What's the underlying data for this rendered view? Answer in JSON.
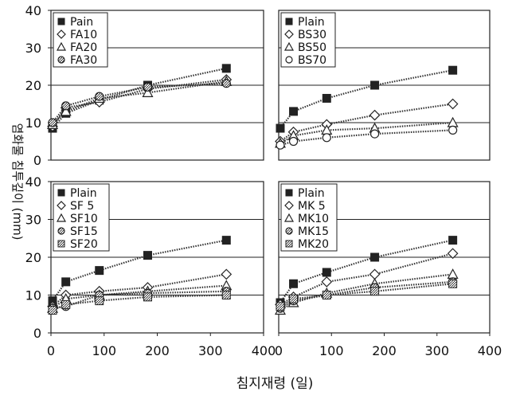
{
  "chart_data": {
    "type": "line",
    "xlabel": "침지재령 (일)",
    "ylabel": "염화물 침투깊이 (mm)",
    "xlim": [
      0,
      400
    ],
    "ylim": [
      0,
      40
    ],
    "x_ticks": [
      "0",
      "100",
      "200",
      "300",
      "400"
    ],
    "y_ticks": [
      "0",
      "10",
      "20",
      "30",
      "40"
    ],
    "grid": "horizontal",
    "panels": [
      {
        "legend_position": "top-left",
        "series": [
          {
            "name": "Pain",
            "marker": "square-filled",
            "x": [
              3,
              28,
              91,
              182,
              330
            ],
            "y": [
              8.5,
              12.5,
              16.0,
              20.0,
              24.5
            ]
          },
          {
            "name": "FA10",
            "marker": "diamond",
            "x": [
              3,
              28,
              91,
              182,
              330
            ],
            "y": [
              9.0,
              14.0,
              15.5,
              19.0,
              21.5
            ]
          },
          {
            "name": "FA20",
            "marker": "triangle",
            "x": [
              3,
              28,
              91,
              182,
              330
            ],
            "y": [
              9.5,
              13.0,
              16.5,
              18.0,
              21.0
            ]
          },
          {
            "name": "FA30",
            "marker": "circle-hatched",
            "x": [
              3,
              28,
              91,
              182,
              330
            ],
            "y": [
              10.0,
              14.5,
              17.0,
              19.5,
              20.5
            ]
          }
        ]
      },
      {
        "legend_position": "top-left",
        "series": [
          {
            "name": "Plain",
            "marker": "square-filled",
            "x": [
              3,
              28,
              91,
              182,
              330
            ],
            "y": [
              8.5,
              13.0,
              16.5,
              20.0,
              24.0
            ]
          },
          {
            "name": "BS30",
            "marker": "diamond",
            "x": [
              3,
              28,
              91,
              182,
              330
            ],
            "y": [
              5.0,
              7.5,
              9.5,
              12.0,
              15.0
            ]
          },
          {
            "name": "BS50",
            "marker": "triangle",
            "x": [
              3,
              28,
              91,
              182,
              330
            ],
            "y": [
              4.5,
              6.5,
              8.0,
              8.5,
              10.0
            ]
          },
          {
            "name": "BS70",
            "marker": "circle",
            "x": [
              3,
              28,
              91,
              182,
              330
            ],
            "y": [
              4.0,
              5.0,
              6.0,
              7.0,
              8.0
            ]
          }
        ]
      },
      {
        "legend_position": "top-left",
        "series": [
          {
            "name": "Plain",
            "marker": "square-filled",
            "x": [
              3,
              28,
              91,
              182,
              330
            ],
            "y": [
              8.5,
              13.5,
              16.5,
              20.5,
              24.5
            ]
          },
          {
            "name": "SF 5",
            "marker": "diamond",
            "x": [
              3,
              28,
              91,
              182,
              330
            ],
            "y": [
              7.0,
              10.0,
              11.0,
              12.0,
              15.5
            ]
          },
          {
            "name": "SF10",
            "marker": "triangle",
            "x": [
              3,
              28,
              91,
              182,
              330
            ],
            "y": [
              6.5,
              9.0,
              10.0,
              11.0,
              12.5
            ]
          },
          {
            "name": "SF15",
            "marker": "circle-hatched",
            "x": [
              3,
              28,
              91,
              182,
              330
            ],
            "y": [
              6.5,
              7.0,
              10.0,
              10.5,
              11.0
            ]
          },
          {
            "name": "SF20",
            "marker": "square-hatched",
            "x": [
              3,
              28,
              91,
              182,
              330
            ],
            "y": [
              6.0,
              7.5,
              8.5,
              9.5,
              10.0
            ]
          }
        ]
      },
      {
        "legend_position": "top-left",
        "series": [
          {
            "name": "Plain",
            "marker": "square-filled",
            "x": [
              3,
              28,
              91,
              182,
              330
            ],
            "y": [
              8.0,
              13.0,
              16.0,
              20.0,
              24.5
            ]
          },
          {
            "name": "MK 5",
            "marker": "diamond",
            "x": [
              3,
              28,
              91,
              182,
              330
            ],
            "y": [
              7.5,
              9.5,
              13.5,
              15.5,
              21.0
            ]
          },
          {
            "name": "MK10",
            "marker": "triangle",
            "x": [
              3,
              28,
              91,
              182,
              330
            ],
            "y": [
              6.0,
              8.0,
              10.5,
              13.0,
              15.5
            ]
          },
          {
            "name": "MK15",
            "marker": "circle-hatched",
            "x": [
              3,
              28,
              91,
              182,
              330
            ],
            "y": [
              6.5,
              8.5,
              10.0,
              12.0,
              13.5
            ]
          },
          {
            "name": "MK20",
            "marker": "square-hatched",
            "x": [
              3,
              28,
              91,
              182,
              330
            ],
            "y": [
              7.0,
              9.0,
              10.0,
              11.0,
              13.0
            ]
          }
        ]
      }
    ]
  }
}
